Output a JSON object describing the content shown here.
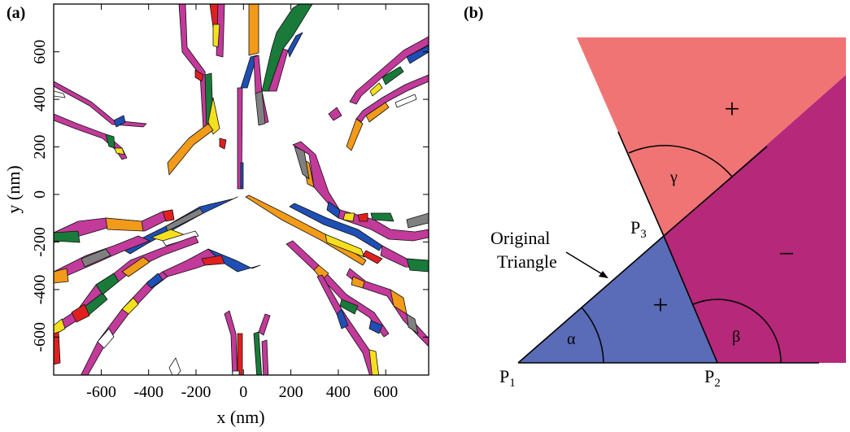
{
  "panel_a": {
    "label": "(a)",
    "xlabel": "x (nm)",
    "ylabel": "y (nm)",
    "xlim": [
      -780,
      800
    ],
    "ylim": [
      -780,
      780
    ],
    "xticks": [
      "-600",
      "-400",
      "-200",
      "0",
      "200",
      "400",
      "600"
    ],
    "yticks": [
      "600",
      "400",
      "200",
      "0",
      "-200",
      "-400",
      "-600"
    ],
    "colors": [
      "#c23a9a",
      "#1f4fb5",
      "#f29a1a",
      "#1a7a3a",
      "#e02020",
      "#f5e020",
      "#808080",
      "#ffffff"
    ]
  },
  "panel_b": {
    "label": "(b)",
    "annotation_line1": "Original",
    "annotation_line2": "Triangle",
    "points": {
      "p1": "P",
      "p1_sub": "1",
      "p2": "P",
      "p2_sub": "2",
      "p3": "P",
      "p3_sub": "3"
    },
    "angles": {
      "alpha": "α",
      "beta": "β",
      "gamma": "γ"
    },
    "signs": {
      "upper": "+",
      "lower": "+",
      "right": "−"
    },
    "colors": {
      "upper_region": "#f07474",
      "right_region": "#b5287a",
      "triangle": "#5a6bb7"
    }
  }
}
